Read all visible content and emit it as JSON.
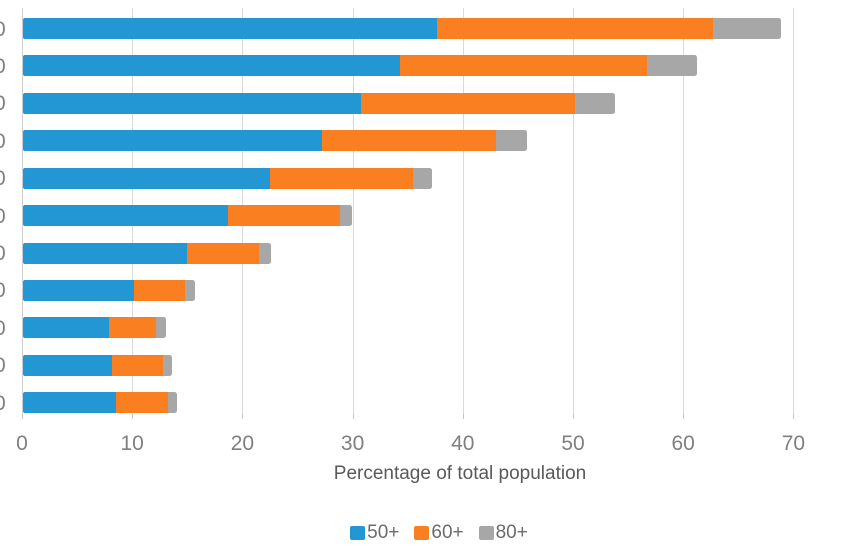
{
  "chart_data": {
    "type": "bar",
    "orientation": "horizontal",
    "stacked": true,
    "title": "",
    "xlabel": "Percentage of total population",
    "x_ticks": [
      0,
      10,
      20,
      30,
      40,
      50,
      60,
      70
    ],
    "xlim": [
      0,
      70
    ],
    "grid": true,
    "legend_position": "bottom",
    "categories": [
      "0",
      "0",
      "0",
      "0",
      "0",
      "0",
      "0",
      "0",
      "0",
      "0",
      "0"
    ],
    "series": [
      {
        "name": "50+",
        "color": "#2397D4",
        "values": [
          37.6,
          34.2,
          30.7,
          27.1,
          22.4,
          18.6,
          14.9,
          10.1,
          7.8,
          8.1,
          8.4
        ]
      },
      {
        "name": "60+",
        "color": "#FA7F21",
        "values": [
          25.0,
          22.4,
          19.4,
          15.8,
          13.0,
          10.2,
          6.5,
          4.6,
          4.3,
          4.6,
          4.8
        ]
      },
      {
        "name": "80+",
        "color": "#A7A7A7",
        "values": [
          6.2,
          4.6,
          3.6,
          2.8,
          1.7,
          1.1,
          1.1,
          0.9,
          0.9,
          0.8,
          0.8
        ]
      }
    ],
    "bar_totals": [
      68.8,
      61.2,
      53.7,
      45.7,
      37.1,
      29.9,
      22.5,
      15.6,
      13.0,
      13.5,
      14.0
    ]
  },
  "colors": {
    "gridline": "#D9D9D9",
    "axis_line": "#CFCDCD",
    "tick": "#C6C6C6",
    "tick_label": "#7F7F7F",
    "axis_title": "#595959",
    "legend_text": "#6B6B6B",
    "background": "#FFFFFF"
  }
}
